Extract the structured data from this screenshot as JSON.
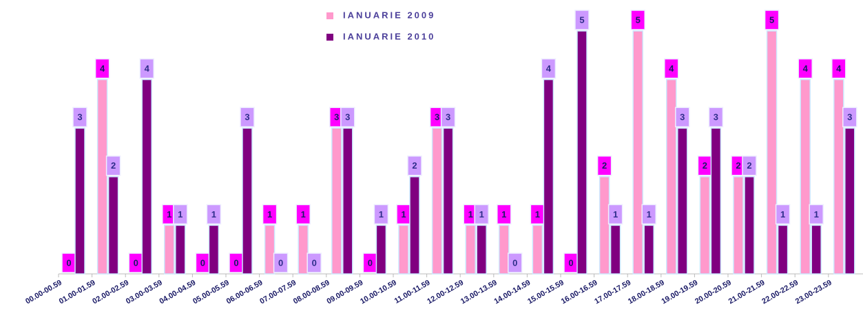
{
  "chart_data": {
    "type": "bar",
    "categories": [
      "00.00-00.59",
      "01.00-01.59",
      "02.00-02.59",
      "03.00-03.59",
      "04.00-04.59",
      "05.00-05.59",
      "06.00-06.59",
      "07.00-07.59",
      "08.00-08.59",
      "09.00-09.59",
      "10.00-10.59",
      "11.00-11.59",
      "12.00-12.59",
      "13.00-13.59",
      "14.00-14.59",
      "15.00-15.59",
      "16.00-16.59",
      "17.00-17.59",
      "18.00-18.59",
      "19.00-19.59",
      "20.00-20.59",
      "21.00-21.59",
      "22.00-22.59",
      "23.00-23.59"
    ],
    "series": [
      {
        "name": "IANUARIE 2009",
        "color": "#ff99cc",
        "label_color": "#ff00ff",
        "values": [
          0,
          4,
          0,
          1,
          0,
          0,
          1,
          1,
          3,
          0,
          1,
          3,
          1,
          1,
          1,
          0,
          2,
          5,
          4,
          2,
          2,
          5,
          4,
          4
        ]
      },
      {
        "name": "IANUARIE 2010",
        "color": "#800080",
        "label_color": "#cc99ff",
        "values": [
          3,
          2,
          4,
          1,
          1,
          3,
          0,
          0,
          3,
          1,
          2,
          3,
          1,
          0,
          4,
          5,
          1,
          1,
          3,
          3,
          2,
          1,
          1,
          3
        ]
      }
    ]
  }
}
